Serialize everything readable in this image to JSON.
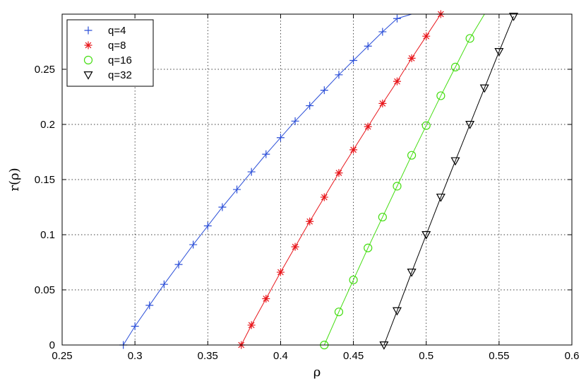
{
  "chart_data": {
    "type": "line",
    "xlabel": "ρ",
    "ylabel": "r(ρ)",
    "xlim": [
      0.25,
      0.6
    ],
    "ylim": [
      0,
      0.3
    ],
    "xticks": [
      0.25,
      0.3,
      0.35,
      0.4,
      0.45,
      0.5,
      0.55,
      0.6
    ],
    "xtick_labels": [
      "0.25",
      "0.3",
      "0.35",
      "0.4",
      "0.45",
      "0.5",
      "0.55",
      "0.6"
    ],
    "yticks": [
      0,
      0.05,
      0.1,
      0.15,
      0.2,
      0.25
    ],
    "ytick_labels": [
      "0",
      "0.05",
      "0.1",
      "0.15",
      "0.2",
      "0.25"
    ],
    "grid": true,
    "legend_position": "top-left",
    "series": [
      {
        "name": "q=4",
        "color": "#2b4fd8",
        "marker": "plus",
        "x": [
          0.292,
          0.3,
          0.31,
          0.32,
          0.33,
          0.34,
          0.35,
          0.36,
          0.37,
          0.38,
          0.39,
          0.4,
          0.41,
          0.42,
          0.43,
          0.44,
          0.45,
          0.46,
          0.47,
          0.48,
          0.49
        ],
        "y": [
          0,
          0.017,
          0.036,
          0.055,
          0.073,
          0.091,
          0.108,
          0.125,
          0.141,
          0.157,
          0.173,
          0.188,
          0.203,
          0.217,
          0.231,
          0.245,
          0.258,
          0.271,
          0.284,
          0.296,
          0.308
        ]
      },
      {
        "name": "q=8",
        "color": "#e8161b",
        "marker": "star",
        "x": [
          0.373,
          0.38,
          0.39,
          0.4,
          0.41,
          0.42,
          0.43,
          0.44,
          0.45,
          0.46,
          0.47,
          0.48,
          0.49,
          0.5,
          0.51
        ],
        "y": [
          0,
          0.018,
          0.042,
          0.066,
          0.089,
          0.112,
          0.134,
          0.156,
          0.177,
          0.198,
          0.219,
          0.239,
          0.26,
          0.28,
          0.3
        ]
      },
      {
        "name": "q=16",
        "color": "#44dd11",
        "marker": "circle",
        "x": [
          0.43,
          0.44,
          0.45,
          0.46,
          0.47,
          0.48,
          0.49,
          0.5,
          0.51,
          0.52,
          0.53,
          0.54
        ],
        "y": [
          0,
          0.03,
          0.059,
          0.088,
          0.116,
          0.144,
          0.172,
          0.199,
          0.226,
          0.252,
          0.278,
          0.303
        ]
      },
      {
        "name": "q=32",
        "color": "#000000",
        "marker": "triangle-down",
        "x": [
          0.471,
          0.48,
          0.49,
          0.5,
          0.51,
          0.52,
          0.53,
          0.54,
          0.55,
          0.56
        ],
        "y": [
          0,
          0.031,
          0.066,
          0.1,
          0.134,
          0.167,
          0.2,
          0.233,
          0.266,
          0.298
        ]
      }
    ]
  }
}
